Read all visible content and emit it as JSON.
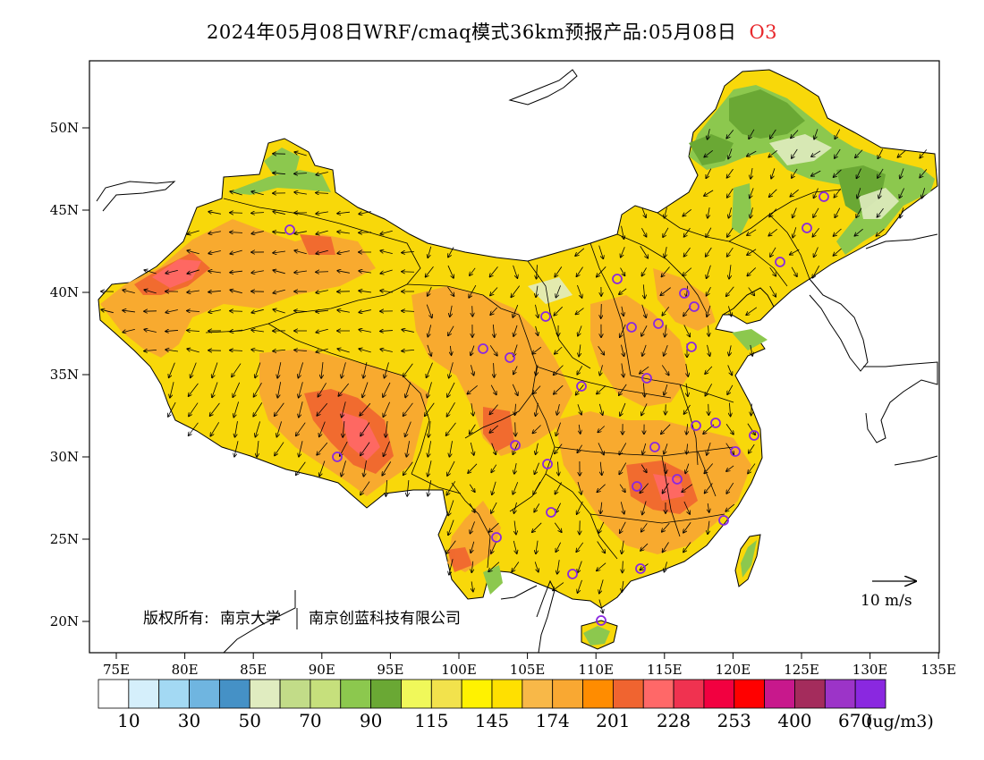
{
  "header": {
    "title": "2024年05月08日WRF/cmaq模式36km预报产品:05月08日",
    "species": "O3"
  },
  "map": {
    "lat_ticks": [
      "50N",
      "45N",
      "40N",
      "35N",
      "30N",
      "25N",
      "20N"
    ],
    "lon_ticks": [
      "75E",
      "80E",
      "85E",
      "90E",
      "95E",
      "100E",
      "105E",
      "110E",
      "115E",
      "120E",
      "125E",
      "130E",
      "135E"
    ],
    "copyright_prefix": "版权所有:",
    "copyright_org1": "南京大学",
    "copyright_org2": "南京创蓝科技有限公司",
    "wind_reference": "10 m/s"
  },
  "colorbar": {
    "colors": [
      "#ffffff",
      "#d5effb",
      "#a3d9f3",
      "#6fb5e0",
      "#4591c6",
      "#e0ecc0",
      "#c2dc88",
      "#c6e07c",
      "#8cc84e",
      "#6aa834",
      "#f0f85a",
      "#f2e24c",
      "#fff200",
      "#ffe000",
      "#f8b848",
      "#f9a832",
      "#ff8c00",
      "#f06430",
      "#ff6868",
      "#f03250",
      "#f20040",
      "#ff0000",
      "#c8188c",
      "#a42c5c",
      "#9c34c8",
      "#8a28e0"
    ],
    "labels": [
      "10",
      "30",
      "50",
      "70",
      "90",
      "115",
      "145",
      "174",
      "201",
      "228",
      "253",
      "400",
      "670"
    ],
    "unit": "(ug/m3)"
  }
}
